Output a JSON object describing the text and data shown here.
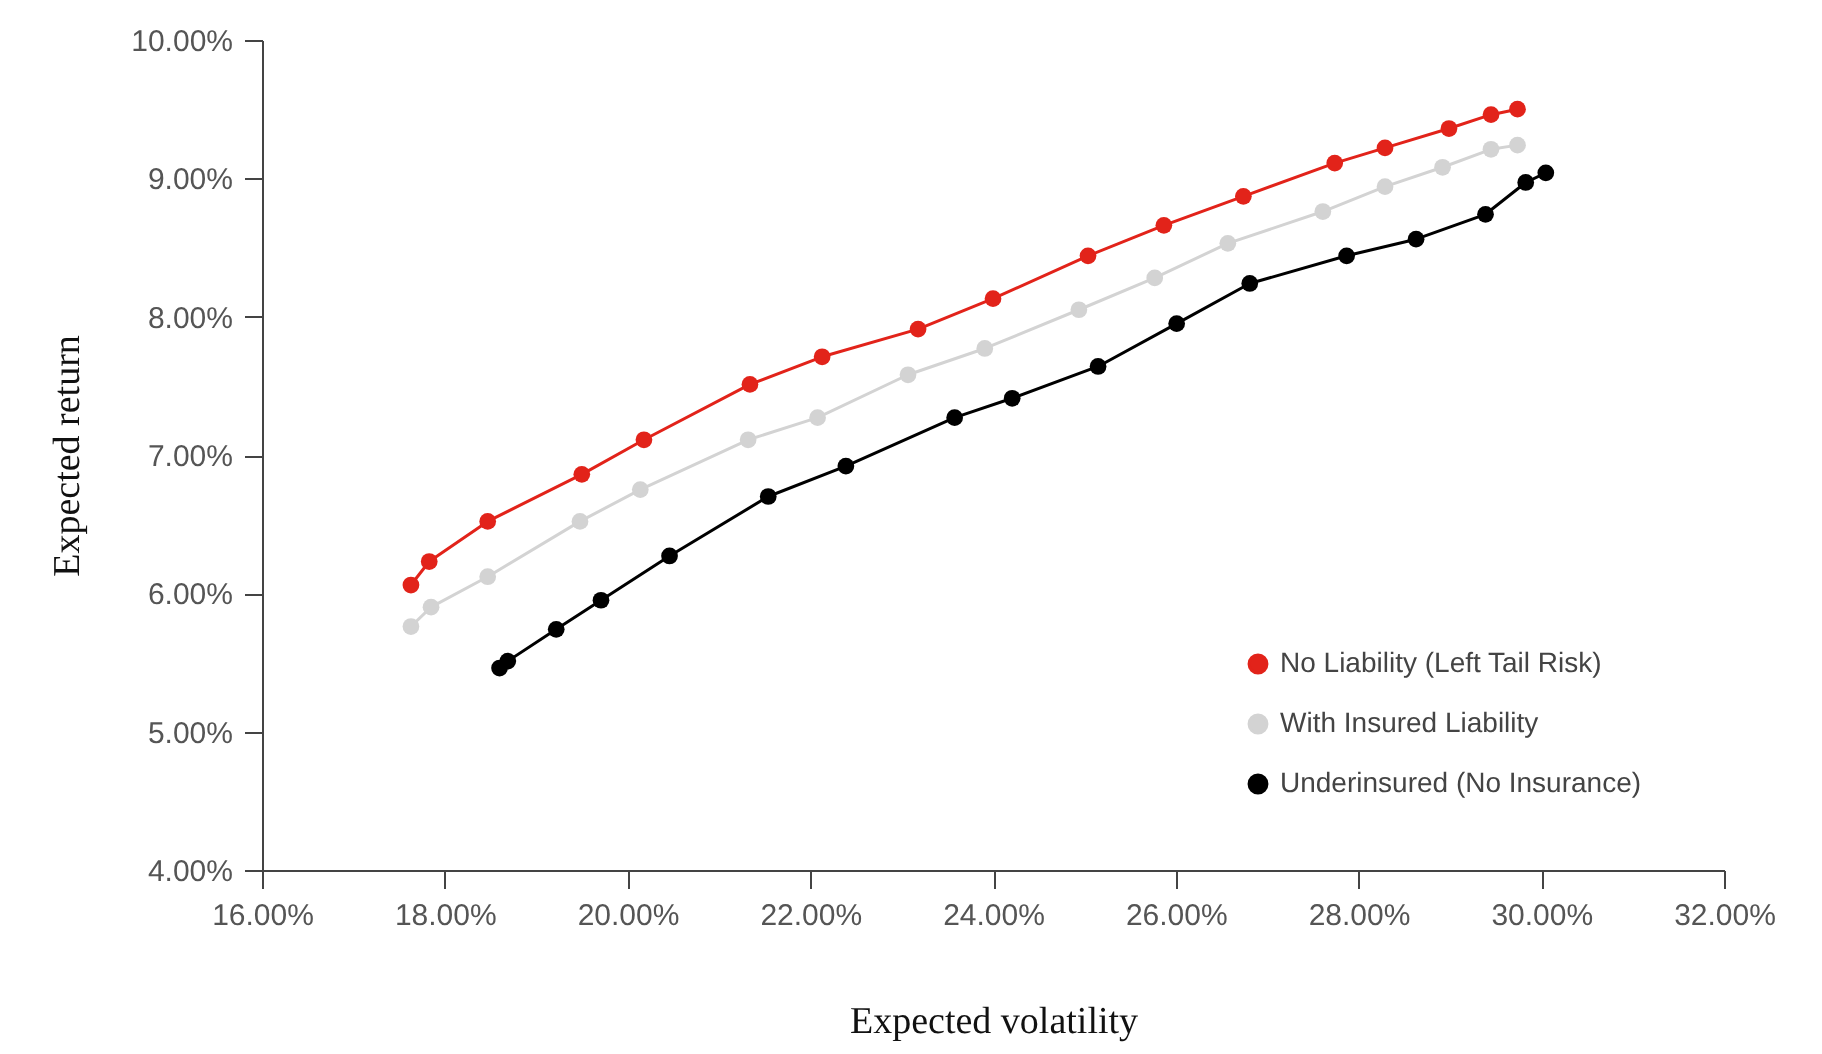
{
  "chart_data": {
    "type": "line",
    "xlabel": "Expected volatility",
    "ylabel": "Expected return",
    "xlim": [
      16,
      32
    ],
    "xticks": [
      {
        "value": 16,
        "label": "16.00%"
      },
      {
        "value": 18,
        "label": "18.00%"
      },
      {
        "value": 20,
        "label": "20.00%"
      },
      {
        "value": 22,
        "label": "22.00%"
      },
      {
        "value": 24,
        "label": "24.00%"
      },
      {
        "value": 26,
        "label": "26.00%"
      },
      {
        "value": 28,
        "label": "28.00%"
      },
      {
        "value": 30,
        "label": "30.00%"
      },
      {
        "value": 32,
        "label": "32.00%"
      }
    ],
    "ylim": [
      4,
      10
    ],
    "yticks": [
      {
        "value": 4,
        "label": "4.00%"
      },
      {
        "value": 5,
        "label": "5.00%"
      },
      {
        "value": 6,
        "label": "6.00%"
      },
      {
        "value": 7,
        "label": "7.00%"
      },
      {
        "value": 8,
        "label": "8.00%"
      },
      {
        "value": 9,
        "label": "9.00%"
      },
      {
        "value": 10,
        "label": "10.00%"
      }
    ],
    "grid": false,
    "legend": "bottom right",
    "marker": "circle",
    "line_style": "solid",
    "series": [
      {
        "name": "No Liability (Left Tail Risk)",
        "color": "#e2231a",
        "x": [
          17.63,
          17.83,
          18.47,
          19.5,
          20.18,
          21.34,
          22.13,
          23.18,
          24.0,
          25.04,
          25.87,
          26.74,
          27.74,
          28.29,
          28.99,
          29.45,
          29.74
        ],
        "values": [
          6.06,
          6.23,
          6.52,
          6.86,
          7.11,
          7.51,
          7.71,
          7.91,
          8.13,
          8.44,
          8.66,
          8.87,
          9.11,
          9.22,
          9.36,
          9.46,
          9.5
        ]
      },
      {
        "name": "With Insured Liability",
        "color": "#d3d3d3",
        "x": [
          17.63,
          17.85,
          18.47,
          19.48,
          20.14,
          21.32,
          22.08,
          23.07,
          23.91,
          24.94,
          25.77,
          26.57,
          27.61,
          28.29,
          28.92,
          29.45,
          29.74
        ],
        "values": [
          5.76,
          5.9,
          6.12,
          6.52,
          6.75,
          7.11,
          7.27,
          7.58,
          7.77,
          8.05,
          8.28,
          8.53,
          8.76,
          8.94,
          9.08,
          9.21,
          9.24
        ]
      },
      {
        "name": "Underinsured (No Insurance)",
        "color": "#000000",
        "x": [
          18.6,
          18.69,
          19.22,
          19.71,
          20.46,
          21.54,
          22.39,
          23.58,
          24.21,
          25.15,
          26.01,
          26.81,
          27.87,
          28.63,
          29.39,
          29.83,
          30.05
        ],
        "values": [
          5.46,
          5.51,
          5.74,
          5.95,
          6.27,
          6.7,
          6.92,
          7.27,
          7.41,
          7.64,
          7.95,
          8.24,
          8.44,
          8.56,
          8.74,
          8.97,
          9.04
        ]
      }
    ]
  }
}
